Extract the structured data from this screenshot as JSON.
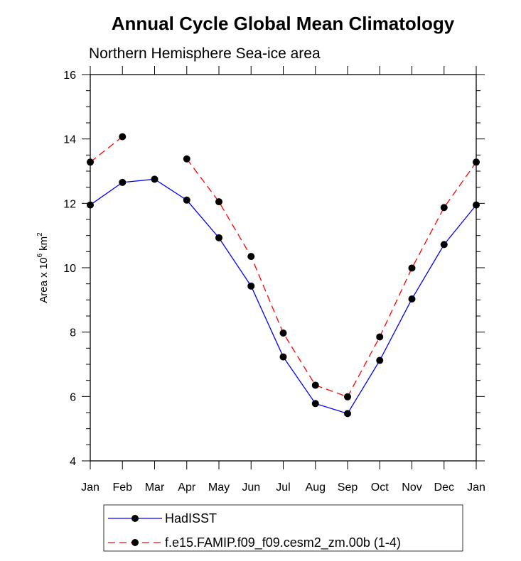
{
  "chart_data": {
    "type": "line",
    "title": "Annual Cycle Global Mean Climatology",
    "subtitle": "Northern Hemisphere Sea-ice area",
    "ylabel": {
      "prefix": "Area x 10",
      "exponent1": "6",
      "middle": " km",
      "exponent2": "2"
    },
    "categories": [
      "Jan",
      "Feb",
      "Mar",
      "Apr",
      "May",
      "Jun",
      "Jul",
      "Aug",
      "Sep",
      "Oct",
      "Nov",
      "Dec",
      "Jan"
    ],
    "ylim": [
      4,
      16
    ],
    "yticks": [
      4,
      6,
      8,
      10,
      12,
      14,
      16
    ],
    "yminor_step": 0.5,
    "grid": false,
    "legend_position": "bottom",
    "series": [
      {
        "name": "HadISST",
        "color": "#0000ff",
        "dash": "solid",
        "values": [
          11.95,
          12.65,
          12.75,
          12.1,
          10.93,
          9.43,
          7.23,
          5.78,
          5.47,
          7.12,
          9.03,
          10.72,
          11.95
        ]
      },
      {
        "name": "f.e15.FAMIP.f09_f09.cesm2_zm.00b (1-4)",
        "color": "#ff0000",
        "dash": "dashed",
        "values": [
          13.28,
          14.07,
          null,
          13.38,
          12.05,
          10.35,
          7.97,
          6.35,
          5.99,
          7.85,
          9.99,
          11.87,
          13.28
        ]
      }
    ]
  }
}
